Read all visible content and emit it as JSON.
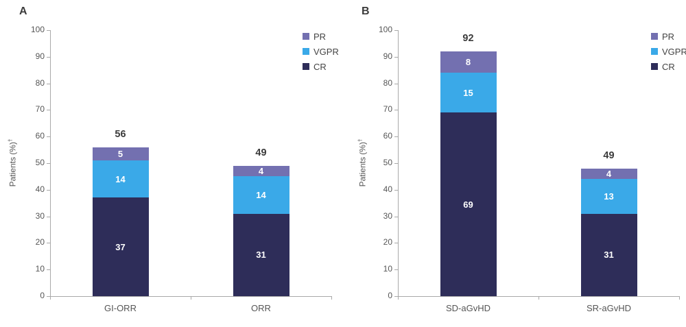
{
  "chart_data": [
    {
      "type": "bar",
      "stacked": true,
      "panel_label": "A",
      "categories": [
        "GI-ORR",
        "ORR"
      ],
      "series": [
        {
          "name": "CR",
          "color": "#2E2D59",
          "values": [
            37,
            31
          ]
        },
        {
          "name": "VGPR",
          "color": "#3AA9E8",
          "values": [
            14,
            14
          ]
        },
        {
          "name": "PR",
          "color": "#7370B0",
          "values": [
            5,
            4
          ]
        }
      ],
      "totals": [
        56,
        49
      ],
      "title": "",
      "xlabel": "",
      "ylabel": "Patients (%)†",
      "ylabel_text": "Patients (%)",
      "ylabel_sup": "†",
      "ylim": [
        0,
        100
      ],
      "ytick_step": 10,
      "grid": false,
      "legend_position": "top-right",
      "legend_items": [
        {
          "label": "PR",
          "color": "#7370B0"
        },
        {
          "label": "VGPR",
          "color": "#3AA9E8"
        },
        {
          "label": "CR",
          "color": "#2E2D59"
        }
      ]
    },
    {
      "type": "bar",
      "stacked": true,
      "panel_label": "B",
      "categories": [
        "SD-aGvHD",
        "SR-aGvHD"
      ],
      "series": [
        {
          "name": "CR",
          "color": "#2E2D59",
          "values": [
            69,
            31
          ]
        },
        {
          "name": "VGPR",
          "color": "#3AA9E8",
          "values": [
            15,
            13
          ]
        },
        {
          "name": "PR",
          "color": "#7370B0",
          "values": [
            8,
            4
          ]
        }
      ],
      "totals": [
        92,
        49
      ],
      "title": "",
      "xlabel": "",
      "ylabel": "Patients (%)†",
      "ylabel_text": "Patients (%)",
      "ylabel_sup": "†",
      "ylim": [
        0,
        100
      ],
      "ytick_step": 10,
      "grid": false,
      "legend_position": "top-right",
      "legend_items": [
        {
          "label": "PR",
          "color": "#7370B0"
        },
        {
          "label": "VGPR",
          "color": "#3AA9E8"
        },
        {
          "label": "CR",
          "color": "#2E2D59"
        }
      ]
    }
  ]
}
